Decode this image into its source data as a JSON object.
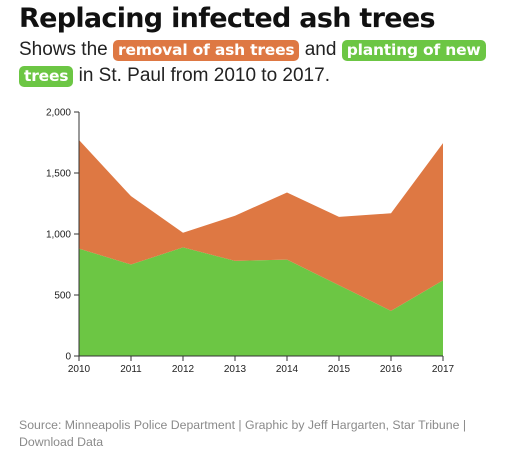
{
  "title": "Replacing infected ash trees",
  "subtitle": {
    "before": "Shows the ",
    "removal_label": "removal of ash trees",
    "middle": " and ",
    "planting_label": "planting of new trees",
    "after": " in St. Paul from 2010 to 2017."
  },
  "colors": {
    "removal": "#de7843",
    "planting": "#6cc644",
    "axis": "#333333"
  },
  "chart_data": {
    "type": "area",
    "stacked": true,
    "x": [
      "2010",
      "2011",
      "2012",
      "2013",
      "2014",
      "2015",
      "2016",
      "2017"
    ],
    "series": [
      {
        "key": "planting",
        "values": [
          880,
          750,
          890,
          780,
          790,
          580,
          370,
          620
        ]
      },
      {
        "key": "removal",
        "values": [
          890,
          560,
          120,
          370,
          550,
          560,
          800,
          1125
        ]
      }
    ],
    "ylim": [
      0,
      2000
    ],
    "yticks": [
      0,
      500,
      1000,
      1500,
      2000
    ],
    "ytick_labels": [
      "0",
      "500",
      "1,000",
      "1,500",
      "2,000"
    ],
    "xlabel": "",
    "ylabel": "",
    "grid": false,
    "legend": "inline in subtitle"
  },
  "footer": {
    "source": "Source: Minneapolis Police Department | Graphic by Jeff Hargarten, Star Tribune |",
    "download": "Download Data"
  }
}
